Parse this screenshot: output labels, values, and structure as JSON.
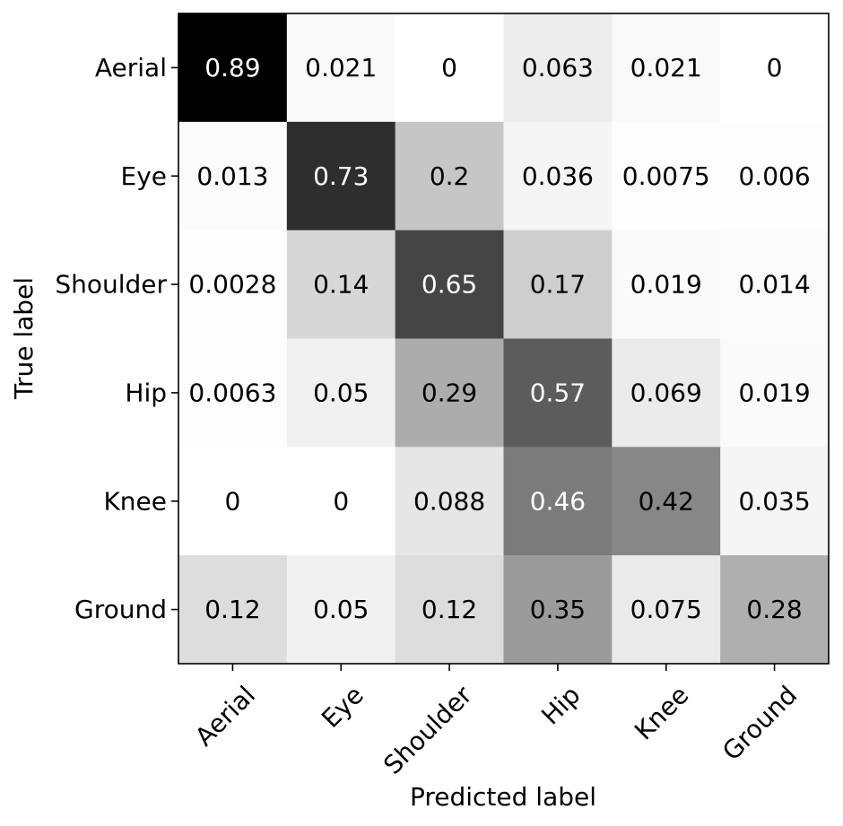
{
  "chart_data": {
    "type": "heatmap",
    "title": "",
    "xlabel": "Predicted label",
    "ylabel": "True label",
    "x_categories": [
      "Aerial",
      "Eye",
      "Shoulder",
      "Hip",
      "Knee",
      "Ground"
    ],
    "y_categories": [
      "Aerial",
      "Eye",
      "Shoulder",
      "Hip",
      "Knee",
      "Ground"
    ],
    "values": [
      [
        0.89,
        0.021,
        0,
        0.063,
        0.021,
        0
      ],
      [
        0.013,
        0.73,
        0.2,
        0.036,
        0.0075,
        0.006
      ],
      [
        0.0028,
        0.14,
        0.65,
        0.17,
        0.019,
        0.014
      ],
      [
        0.0063,
        0.05,
        0.29,
        0.57,
        0.069,
        0.019
      ],
      [
        0,
        0,
        0.088,
        0.46,
        0.42,
        0.035
      ],
      [
        0.12,
        0.05,
        0.12,
        0.35,
        0.075,
        0.28
      ]
    ],
    "value_labels": [
      [
        "0.89",
        "0.021",
        "0",
        "0.063",
        "0.021",
        "0"
      ],
      [
        "0.013",
        "0.73",
        "0.2",
        "0.036",
        "0.0075",
        "0.006"
      ],
      [
        "0.0028",
        "0.14",
        "0.65",
        "0.17",
        "0.019",
        "0.014"
      ],
      [
        "0.0063",
        "0.05",
        "0.29",
        "0.57",
        "0.069",
        "0.019"
      ],
      [
        "0",
        "0",
        "0.088",
        "0.46",
        "0.42",
        "0.035"
      ],
      [
        "0.12",
        "0.05",
        "0.12",
        "0.35",
        "0.075",
        "0.28"
      ]
    ],
    "colormap": "Greys",
    "vmin": 0,
    "vmax": 0.89,
    "low_color": "#ffffff",
    "high_color": "#000000",
    "light_text_color": "#ffffff",
    "dark_text_color": "#000000",
    "colorbar": false,
    "x_tick_rotation_deg": 45
  }
}
